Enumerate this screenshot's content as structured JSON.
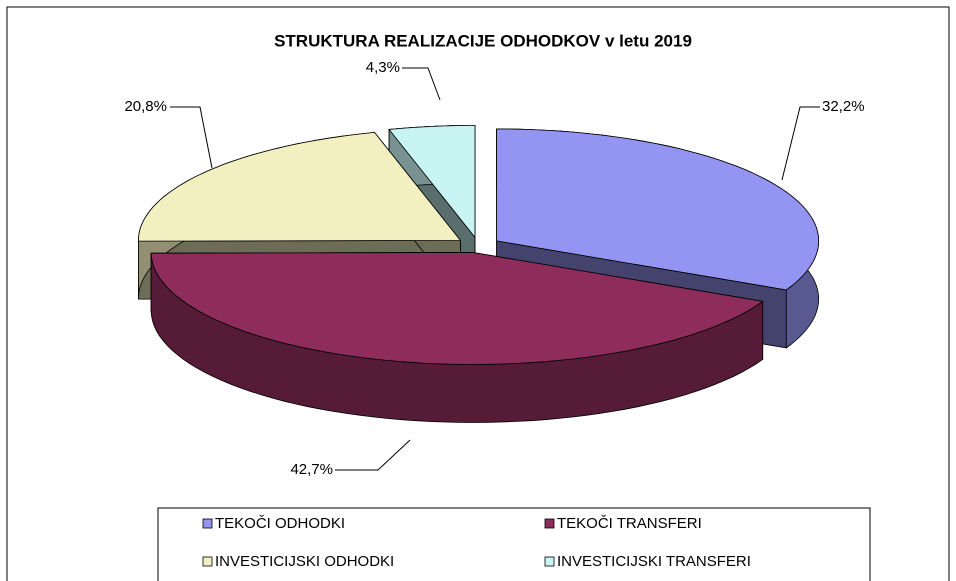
{
  "chart_data": {
    "type": "pie3d",
    "title": "STRUKTURA REALIZACIJE ODHODKOV v letu 2019",
    "series": [
      {
        "name": "TEKOČI ODHODKI",
        "color": "#9494f2",
        "values": [
          32.2
        ],
        "value_labels": [
          "32,2%"
        ]
      },
      {
        "name": "TEKOČI TRANSFERI",
        "color": "#8e2d5c",
        "values": [
          42.7
        ],
        "value_labels": [
          "42,7%"
        ]
      },
      {
        "name": "INVESTICIJSKI ODHODKI",
        "color": "#f2f0c0",
        "values": [
          20.8
        ],
        "value_labels": [
          "20,8%"
        ]
      },
      {
        "name": "INVESTICIJSKI TRANSFERI",
        "color": "#c8f4f4",
        "values": [
          4.3
        ],
        "value_labels": [
          "4,3%"
        ]
      }
    ]
  }
}
